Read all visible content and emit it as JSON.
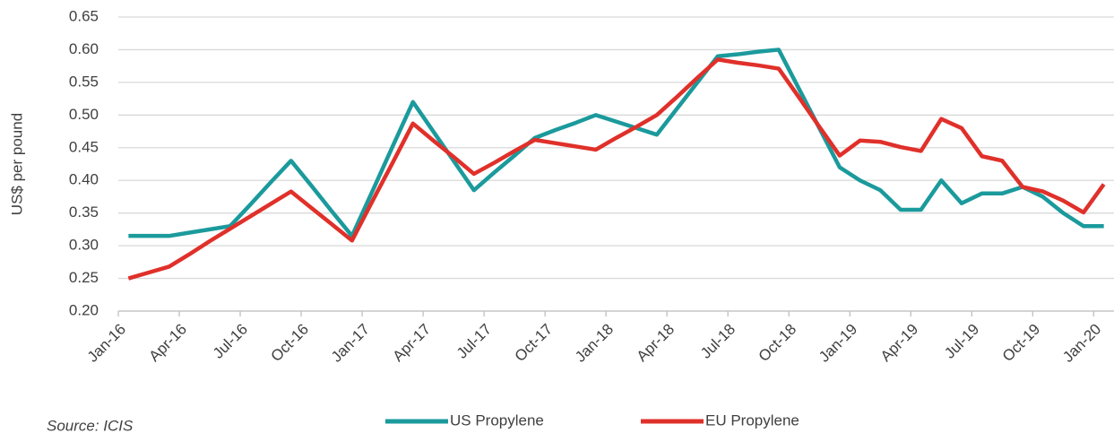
{
  "chart_data": {
    "type": "line",
    "y_label": "US$ per pound",
    "source": "Source: ICIS",
    "categories": [
      "Jan-16",
      null,
      null,
      "Apr-16",
      null,
      null,
      "Jul-16",
      null,
      null,
      "Oct-16",
      null,
      null,
      "Jan-17",
      null,
      null,
      "Apr-17",
      null,
      null,
      "Jul-17",
      null,
      null,
      "Oct-17",
      null,
      null,
      "Jan-18",
      null,
      null,
      "Apr-18",
      null,
      null,
      "Jul-18",
      null,
      null,
      "Oct-18",
      null,
      null,
      "Jan-19",
      null,
      null,
      "Apr-19",
      null,
      null,
      "Jul-19",
      null,
      null,
      "Oct-19",
      null,
      null,
      "Jan-20"
    ],
    "series": [
      {
        "name": "US Propylene",
        "color": "#1b9a9c",
        "values": [
          0.315,
          0.315,
          0.315,
          0.32,
          0.325,
          0.33,
          0.363,
          0.397,
          0.43,
          0.392,
          0.353,
          0.315,
          0.383,
          0.452,
          0.52,
          0.475,
          0.43,
          0.385,
          0.412,
          0.438,
          0.465,
          0.477,
          0.488,
          0.5,
          0.49,
          0.48,
          0.47,
          0.51,
          0.55,
          0.59,
          0.593,
          0.597,
          0.6,
          0.54,
          0.48,
          0.42,
          0.4,
          0.385,
          0.355,
          0.355,
          0.4,
          0.365,
          0.38,
          0.38,
          0.39,
          0.375,
          0.35,
          0.33,
          0.33
        ]
      },
      {
        "name": "EU Propylene",
        "color": "#e0302a",
        "values": [
          0.25,
          0.259,
          0.268,
          0.287,
          0.307,
          0.326,
          0.345,
          0.364,
          0.383,
          0.358,
          0.333,
          0.308,
          0.368,
          0.427,
          0.487,
          0.461,
          0.436,
          0.41,
          0.427,
          0.445,
          0.462,
          0.457,
          0.452,
          0.447,
          0.465,
          0.482,
          0.5,
          0.528,
          0.557,
          0.585,
          0.58,
          0.576,
          0.571,
          0.527,
          0.482,
          0.438,
          0.461,
          0.459,
          0.451,
          0.445,
          0.494,
          0.48,
          0.437,
          0.43,
          0.39,
          0.383,
          0.369,
          0.351,
          0.394
        ]
      }
    ],
    "ylim": [
      0.2,
      0.65
    ],
    "yticks": [
      {
        "value": 0.2,
        "label": "0.20"
      },
      0.25,
      {
        "value": 0.3,
        "label": "0.30"
      },
      0.35,
      {
        "value": 0.4,
        "label": "0.40"
      },
      0.45,
      {
        "value": 0.5,
        "label": "0.50"
      },
      0.55,
      {
        "value": 0.6,
        "label": "0.60"
      },
      0.65
    ],
    "grid": true,
    "legend": "bottom"
  }
}
